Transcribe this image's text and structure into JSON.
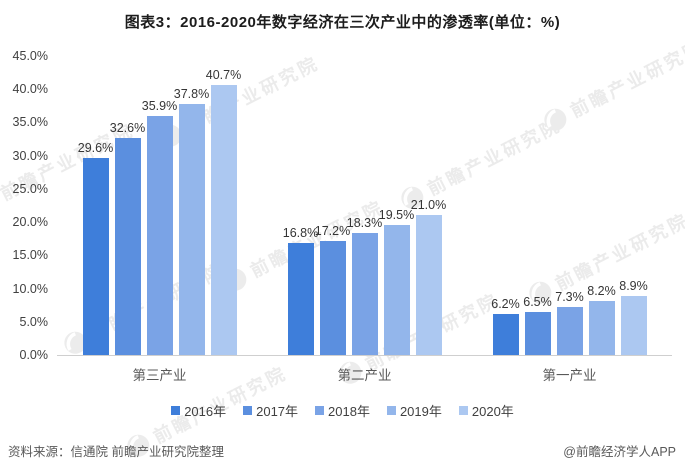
{
  "title": "图表3：2016-2020年数字经济在三次产业中的渗透率(单位：%)",
  "chart_data": {
    "type": "bar",
    "title": "图表3：2016-2020年数字经济在三次产业中的渗透率(单位：%)",
    "categories": [
      "第三产业",
      "第二产业",
      "第一产业"
    ],
    "series": [
      {
        "name": "2016年",
        "color": "#3E7EDA",
        "values": [
          29.6,
          16.8,
          6.2
        ]
      },
      {
        "name": "2017年",
        "color": "#5B8FDF",
        "values": [
          32.6,
          17.2,
          6.5
        ]
      },
      {
        "name": "2018年",
        "color": "#7AA3E6",
        "values": [
          35.9,
          18.3,
          7.3
        ]
      },
      {
        "name": "2019年",
        "color": "#93B6EB",
        "values": [
          37.8,
          19.5,
          8.2
        ]
      },
      {
        "name": "2020年",
        "color": "#ACC8F1",
        "values": [
          40.7,
          21.0,
          8.9
        ]
      }
    ],
    "ylim": [
      0,
      45
    ],
    "ytick_step": 5,
    "ytick_labels": [
      "45.0%",
      "40.0%",
      "35.0%",
      "30.0%",
      "25.0%",
      "20.0%",
      "15.0%",
      "10.0%",
      "5.0%",
      "0.0%"
    ],
    "value_label_format": "one-decimal-percent",
    "grid": false,
    "legend_position": "bottom"
  },
  "footer": {
    "source": "资料来源：信通院 前瞻产业研究院整理",
    "credit": "@前瞻经济学人APP"
  },
  "watermark": {
    "text": "前瞻产业研究院",
    "logo": "crescent-circle-icon"
  }
}
